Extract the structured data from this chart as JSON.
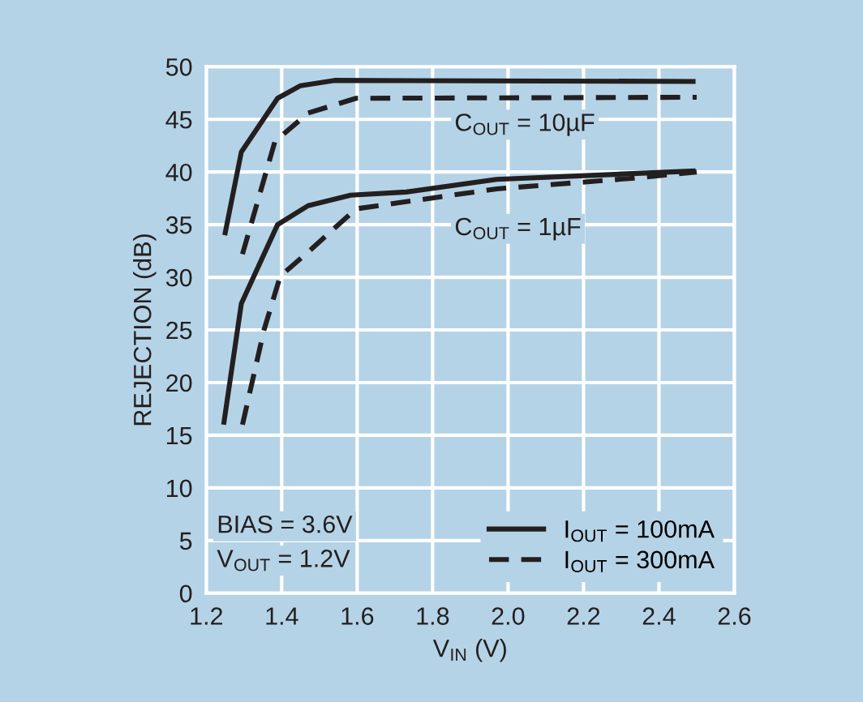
{
  "chart_data": {
    "type": "line",
    "xlabel": "V$_{IN}$ (V)",
    "ylabel": "REJECTION (dB)",
    "xlim": [
      1.2,
      2.6
    ],
    "xticks": [
      1.2,
      1.4,
      1.6,
      1.8,
      {
        "value": 2.0,
        "label": "2.0"
      },
      2.2,
      2.4,
      2.6
    ],
    "ylim": [
      0,
      50
    ],
    "yticks": [
      0,
      5,
      10,
      15,
      20,
      25,
      30,
      35,
      40,
      45,
      50
    ],
    "grid": true,
    "legend": "bottom right",
    "marker": "none",
    "series": [
      {
        "name": "I$_{OUT}$ = 100mA",
        "color": "#231f20",
        "line_style": "solid",
        "x": [
          1.249,
          1.293,
          1.389,
          1.45,
          1.54,
          2.497
        ],
        "values": [
          34.0,
          41.9,
          47.0,
          48.2,
          48.7,
          48.6
        ]
      },
      {
        "name": "I$_{OUT}$ = 300mA",
        "color": "#231f20",
        "line_style": "dashed",
        "x": [
          1.296,
          1.382,
          1.47,
          1.597,
          2.5
        ],
        "values": [
          32.2,
          42.9,
          45.6,
          47.0,
          47.1
        ]
      },
      {
        "color": "#231f20",
        "line_style": "solid",
        "x": [
          1.246,
          1.293,
          1.389,
          1.47,
          1.583,
          1.73,
          1.97,
          2.497
        ],
        "values": [
          16.0,
          27.5,
          35.0,
          36.8,
          37.8,
          38.1,
          39.3,
          40.1
        ]
      },
      {
        "color": "#231f20",
        "line_style": "dashed",
        "x": [
          1.296,
          1.353,
          1.396,
          1.47,
          1.597,
          1.97,
          2.328,
          2.5
        ],
        "values": [
          16.0,
          25.0,
          30.1,
          32.4,
          36.5,
          38.4,
          39.4,
          40.0
        ]
      }
    ],
    "annotations": [
      "C$_{OUT}$ = 10µF",
      "C$_{OUT}$ = 1µF",
      "BIAS = 3.6V",
      "V$_{OUT}$ = 1.2V"
    ]
  }
}
